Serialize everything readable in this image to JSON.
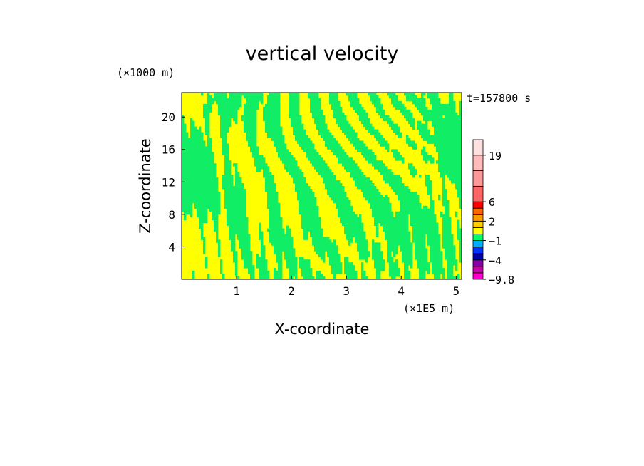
{
  "chart_data": {
    "type": "heatmap",
    "title": "vertical velocity",
    "xlabel": "X-coordinate",
    "ylabel": "Z-coordinate",
    "x_unit": "(×1E5 m)",
    "y_unit": "(×1000 m)",
    "time_label": "t=157800 s",
    "xlim": [
      0,
      5.1
    ],
    "ylim": [
      0,
      23
    ],
    "x_ticks": [
      1,
      2,
      3,
      4,
      5
    ],
    "y_ticks": [
      4,
      8,
      12,
      16,
      20
    ],
    "colorbar": {
      "labels": [
        "19",
        "6",
        "2",
        "−1",
        "−4",
        "−9.8"
      ],
      "label_values": [
        19,
        6,
        2,
        -1,
        -4,
        -9.8
      ],
      "levels": [
        -9.8,
        -7,
        -5.5,
        -4,
        -3,
        -2,
        -1,
        0,
        1,
        2,
        3,
        4,
        6,
        10,
        14,
        19,
        24
      ],
      "colors": [
        "#ff00cc",
        "#cc00aa",
        "#8800aa",
        "#0000aa",
        "#0033ff",
        "#00aaff",
        "#00ff66",
        "#ffff00",
        "#ffcc00",
        "#ff9900",
        "#ff6600",
        "#ff0000",
        "#ff6666",
        "#ff9999",
        "#ffbbbb",
        "#ffe0e0"
      ]
    },
    "field_colors": {
      "positive": "#ffff00",
      "negative": "#11ee66"
    },
    "grid": false
  }
}
